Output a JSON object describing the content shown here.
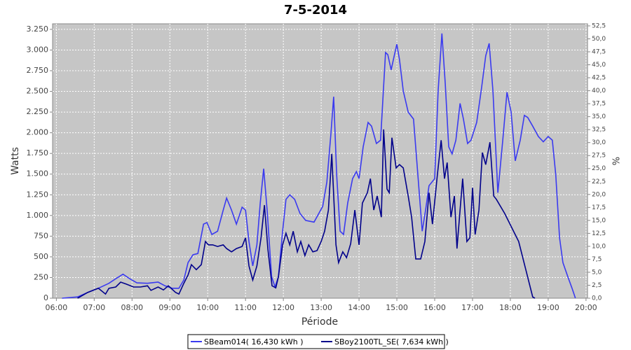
{
  "chart_data": {
    "type": "line",
    "title": "7-5-2014",
    "x_label": "Période",
    "y_label": "Watts",
    "y2_label": "%",
    "xlim": [
      5.9,
      20.04
    ],
    "ylim": [
      0,
      3317
    ],
    "y2lim": [
      0,
      52.9
    ],
    "grid": true,
    "legend": "bottom",
    "xticks": [
      {
        "value": 6,
        "label": "06:00"
      },
      {
        "value": 7,
        "label": "07:00"
      },
      {
        "value": 8,
        "label": "08:00"
      },
      {
        "value": 9,
        "label": "09:00"
      },
      {
        "value": 10,
        "label": "10:00"
      },
      {
        "value": 11,
        "label": "11:00"
      },
      {
        "value": 12,
        "label": "12:00"
      },
      {
        "value": 13,
        "label": "13:00"
      },
      {
        "value": 14,
        "label": "14:00"
      },
      {
        "value": 15,
        "label": "15:00"
      },
      {
        "value": 16,
        "label": "16:00"
      },
      {
        "value": 17,
        "label": "17:00"
      },
      {
        "value": 18,
        "label": "18:00"
      },
      {
        "value": 19,
        "label": "19:00"
      },
      {
        "value": 20,
        "label": "20:00"
      }
    ],
    "yticks": [
      0,
      250,
      500,
      750,
      {
        "value": 1000,
        "label": "1.000"
      },
      {
        "value": 1250,
        "label": "1.250"
      },
      {
        "value": 1500,
        "label": "1.500"
      },
      {
        "value": 1750,
        "label": "1.750"
      },
      {
        "value": 2000,
        "label": "2.000"
      },
      {
        "value": 2250,
        "label": "2.250"
      },
      {
        "value": 2500,
        "label": "2.500"
      },
      {
        "value": 2750,
        "label": "2.750"
      },
      {
        "value": 3000,
        "label": "3.000"
      },
      {
        "value": 3250,
        "label": "3.250"
      }
    ],
    "y2ticks": [
      {
        "value": 0,
        "label": "0,0"
      },
      {
        "value": 2.5,
        "label": "2,5"
      },
      {
        "value": 5,
        "label": "5,0"
      },
      {
        "value": 7.5,
        "label": "7,5"
      },
      {
        "value": 10,
        "label": "10,0"
      },
      {
        "value": 12.5,
        "label": "12,5"
      },
      {
        "value": 15,
        "label": "15,0"
      },
      {
        "value": 17.5,
        "label": "17,5"
      },
      {
        "value": 20,
        "label": "20,0"
      },
      {
        "value": 22.5,
        "label": "22,5"
      },
      {
        "value": 25,
        "label": "25,0"
      },
      {
        "value": 27.5,
        "label": "27,5"
      },
      {
        "value": 30,
        "label": "30,0"
      },
      {
        "value": 32.5,
        "label": "32,5"
      },
      {
        "value": 35,
        "label": "35,0"
      },
      {
        "value": 37.5,
        "label": "37,5"
      },
      {
        "value": 40,
        "label": "40,0"
      },
      {
        "value": 42.5,
        "label": "42,5"
      },
      {
        "value": 45,
        "label": "45,0"
      },
      {
        "value": 47.5,
        "label": "47,5"
      },
      {
        "value": 50,
        "label": "50,0"
      },
      {
        "value": 52.5,
        "label": "52,5"
      }
    ],
    "series": [
      {
        "name": "SBeam014( 16,430 kWh )",
        "color": "#3a3af0",
        "x": [
          6.15,
          6.56,
          6.83,
          7.11,
          7.39,
          7.57,
          7.76,
          7.94,
          8.13,
          8.41,
          8.69,
          8.87,
          9.06,
          9.24,
          9.37,
          9.48,
          9.61,
          9.74,
          9.89,
          9.98,
          10.11,
          10.26,
          10.41,
          10.5,
          10.63,
          10.76,
          10.91,
          11.0,
          11.09,
          11.19,
          11.3,
          11.39,
          11.48,
          11.57,
          11.69,
          11.78,
          11.87,
          11.98,
          12.07,
          12.17,
          12.3,
          12.44,
          12.59,
          12.81,
          13.04,
          13.15,
          13.26,
          13.33,
          13.41,
          13.5,
          13.59,
          13.7,
          13.83,
          13.93,
          14.0,
          14.11,
          14.24,
          14.33,
          14.46,
          14.57,
          14.7,
          14.76,
          14.85,
          14.93,
          15.0,
          15.07,
          15.17,
          15.3,
          15.44,
          15.57,
          15.67,
          15.76,
          15.85,
          16.0,
          16.09,
          16.19,
          16.28,
          16.37,
          16.46,
          16.56,
          16.67,
          16.76,
          16.87,
          16.96,
          17.11,
          17.24,
          17.35,
          17.44,
          17.54,
          17.67,
          17.8,
          17.91,
          18.02,
          18.13,
          18.26,
          18.37,
          18.46,
          18.59,
          18.74,
          18.87,
          19.0,
          19.11,
          19.2,
          19.3,
          19.39,
          19.52,
          19.63,
          19.72
        ],
        "values": [
          0,
          15,
          70,
          120,
          180,
          235,
          290,
          235,
          185,
          180,
          195,
          150,
          120,
          120,
          220,
          430,
          525,
          540,
          895,
          915,
          770,
          810,
          1065,
          1210,
          1065,
          895,
          1100,
          1065,
          685,
          390,
          645,
          1150,
          1565,
          1065,
          260,
          135,
          260,
          810,
          1195,
          1250,
          1195,
          1025,
          940,
          920,
          1110,
          1405,
          2000,
          2435,
          1490,
          810,
          770,
          1150,
          1445,
          1530,
          1445,
          1830,
          2125,
          2080,
          1870,
          1910,
          2970,
          2945,
          2760,
          2930,
          3070,
          2885,
          2505,
          2250,
          2165,
          1405,
          810,
          1065,
          1360,
          1445,
          2505,
          3200,
          2590,
          1830,
          1745,
          1910,
          2355,
          2165,
          1870,
          1910,
          2125,
          2545,
          2930,
          3080,
          2505,
          1275,
          1910,
          2490,
          2250,
          1660,
          1910,
          2210,
          2185,
          2080,
          1955,
          1890,
          1955,
          1910,
          1490,
          730,
          430,
          260,
          120,
          0
        ]
      },
      {
        "name": "SBoy2100TL_SE( 7,634 kWh )",
        "color": "#00008b",
        "x": [
          6.56,
          6.83,
          7.11,
          7.3,
          7.39,
          7.57,
          7.7,
          7.85,
          8.04,
          8.22,
          8.41,
          8.5,
          8.69,
          8.83,
          8.96,
          9.15,
          9.24,
          9.37,
          9.48,
          9.57,
          9.7,
          9.83,
          9.94,
          10.02,
          10.13,
          10.26,
          10.41,
          10.5,
          10.63,
          10.76,
          10.91,
          11.0,
          11.09,
          11.19,
          11.3,
          11.41,
          11.5,
          11.59,
          11.7,
          11.8,
          11.87,
          11.98,
          12.07,
          12.17,
          12.26,
          12.37,
          12.46,
          12.57,
          12.67,
          12.78,
          12.89,
          13.0,
          13.09,
          13.19,
          13.28,
          13.39,
          13.46,
          13.57,
          13.67,
          13.78,
          13.89,
          14.0,
          14.09,
          14.22,
          14.3,
          14.39,
          14.48,
          14.59,
          14.65,
          14.74,
          14.8,
          14.87,
          14.98,
          15.07,
          15.17,
          15.3,
          15.39,
          15.5,
          15.63,
          15.74,
          15.85,
          15.94,
          16.07,
          16.17,
          16.26,
          16.33,
          16.43,
          16.52,
          16.59,
          16.67,
          16.74,
          16.85,
          16.93,
          17.0,
          17.07,
          17.17,
          17.26,
          17.35,
          17.46,
          17.56,
          17.63,
          17.85,
          18.22,
          18.59,
          18.65
        ],
        "values": [
          0,
          70,
          120,
          50,
          120,
          135,
          195,
          170,
          135,
          135,
          150,
          95,
          135,
          100,
          150,
          70,
          50,
          180,
          280,
          405,
          345,
          405,
          685,
          645,
          645,
          625,
          645,
          600,
          560,
          600,
          625,
          730,
          390,
          220,
          390,
          730,
          1125,
          600,
          150,
          125,
          260,
          645,
          785,
          645,
          810,
          560,
          685,
          515,
          645,
          560,
          575,
          685,
          810,
          1065,
          1745,
          645,
          430,
          560,
          490,
          660,
          1065,
          645,
          1150,
          1275,
          1445,
          1065,
          1235,
          980,
          2040,
          1320,
          1275,
          1940,
          1575,
          1615,
          1575,
          1235,
          980,
          475,
          475,
          685,
          1275,
          895,
          1490,
          1910,
          1445,
          1640,
          980,
          1235,
          600,
          1065,
          1445,
          685,
          730,
          1335,
          770,
          1065,
          1760,
          1615,
          1885,
          1235,
          1195,
          1025,
          685,
          15,
          0
        ]
      }
    ]
  }
}
